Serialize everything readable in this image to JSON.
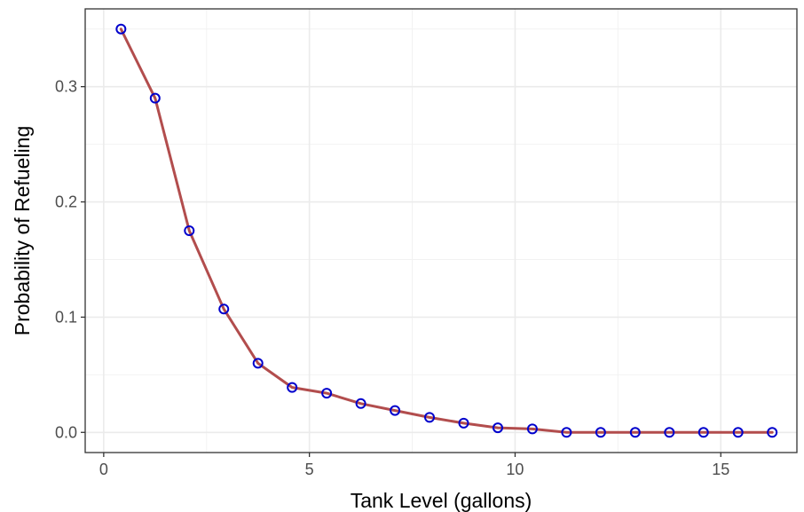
{
  "chart_data": {
    "type": "line",
    "title": "",
    "xlabel": "Tank Level (gallons)",
    "ylabel": "Probability of Refueling",
    "xlim": [
      -0.45,
      16.85
    ],
    "ylim": [
      -0.0175,
      0.3675
    ],
    "x_ticks": [
      0,
      5,
      10,
      15
    ],
    "x_tick_labels": [
      "0",
      "5",
      "10",
      "15"
    ],
    "y_ticks": [
      0.0,
      0.1,
      0.2,
      0.3
    ],
    "y_tick_labels": [
      "0.0",
      "0.1",
      "0.2",
      "0.3"
    ],
    "grid": true,
    "legend": "none",
    "series": [
      {
        "x": [
          0.42,
          1.25,
          2.08,
          2.92,
          3.75,
          4.58,
          5.42,
          6.25,
          7.08,
          7.92,
          8.75,
          9.58,
          10.42,
          11.25,
          12.08,
          12.92,
          13.75,
          14.58,
          15.42,
          16.25
        ],
        "y": [
          0.35,
          0.29,
          0.175,
          0.107,
          0.06,
          0.039,
          0.034,
          0.025,
          0.019,
          0.013,
          0.008,
          0.004,
          0.003,
          0.0,
          0.0,
          0.0,
          0.0,
          0.0,
          0.0,
          0.0
        ]
      }
    ],
    "colors": {
      "line": "#B24D4D",
      "points": "#0000CC",
      "grid_major": "#EBEBEB",
      "grid_minor": "#F2F2F2",
      "panel_border": "#333333"
    }
  }
}
